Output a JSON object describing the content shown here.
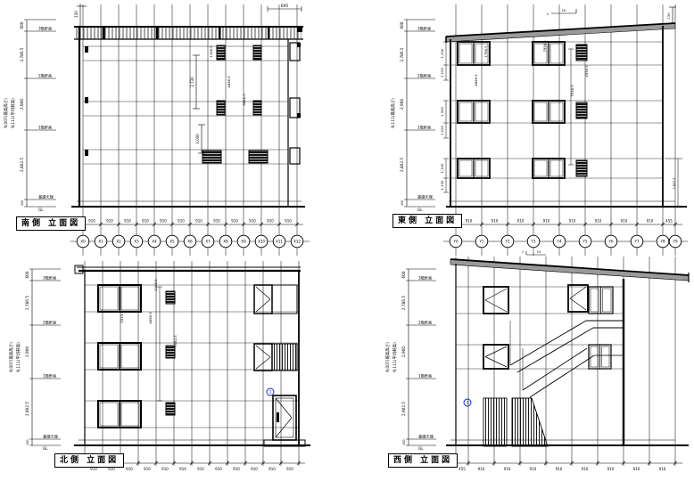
{
  "sheet": {
    "colors": {
      "background": "#ffffff",
      "line": "#000000",
      "roof_band": "#9a9a9a",
      "marker_blue": "#0022cc"
    }
  },
  "titles": {
    "south": "南側 立面図",
    "east": "東側 立面図",
    "north": "北側 立面図",
    "west": "西側 立面図"
  },
  "x_grid": {
    "bubbles": [
      "X0",
      "X1",
      "X2",
      "X3",
      "X4",
      "X5",
      "X6",
      "X7",
      "X8",
      "X9",
      "X10",
      "X11",
      "X12"
    ],
    "dims": [
      "910",
      "910",
      "910",
      "910",
      "910",
      "910",
      "910",
      "910",
      "910",
      "910",
      "910",
      "910"
    ]
  },
  "y_grid": {
    "bubbles": [
      "Y0",
      "Y1",
      "Y2",
      "Y3",
      "Y4",
      "Y5",
      "Y6",
      "Y7",
      "Y8",
      "Y9"
    ],
    "dims_east": [
      "910",
      "910",
      "910",
      "910",
      "910",
      "910",
      "910",
      "910",
      "455"
    ],
    "dims_west": [
      "455",
      "910",
      "910",
      "910",
      "910",
      "910",
      "910",
      "910",
      "910"
    ]
  },
  "chains": {
    "parapet": "600",
    "floor3": "2,786.5",
    "floor2": "2,900",
    "floor1_std": "2,802.5",
    "floor1_west": "2,902.5",
    "base": "450",
    "labels": {
      "f3": "3階軒高",
      "f2": "2階軒高",
      "f1": "1階軒高",
      "base": "基礎天端",
      "gl": "GL"
    },
    "overall_max": "9,007(最高高さ)",
    "overall_eave": "9,111(平均軒高)",
    "overall_east": "9,111(最高高さ)"
  },
  "annotations": {
    "south": {
      "parapet_height": "130",
      "roof_right": "695",
      "brackets": [
        "2,730",
        "3,000"
      ],
      "heights": [
        "1196.5",
        "4896.5",
        "8846.5"
      ]
    },
    "east": {
      "slope_run": "10",
      "slope_rise": "1",
      "parapet_height": "130",
      "window_heights": [
        "1,300",
        "1,100"
      ],
      "heights": [
        "1796.5",
        "4896.5",
        "7936.5",
        "7536.5",
        "4938.5"
      ],
      "right_dim": "2,802.5"
    },
    "north": {
      "heights": [
        "1196.5",
        "4696.5",
        "7682.5",
        "5319.5"
      ],
      "door_mark": "1"
    },
    "west": {
      "stair_mark": "1",
      "slope_run": "10",
      "slope_rise": "1"
    }
  }
}
